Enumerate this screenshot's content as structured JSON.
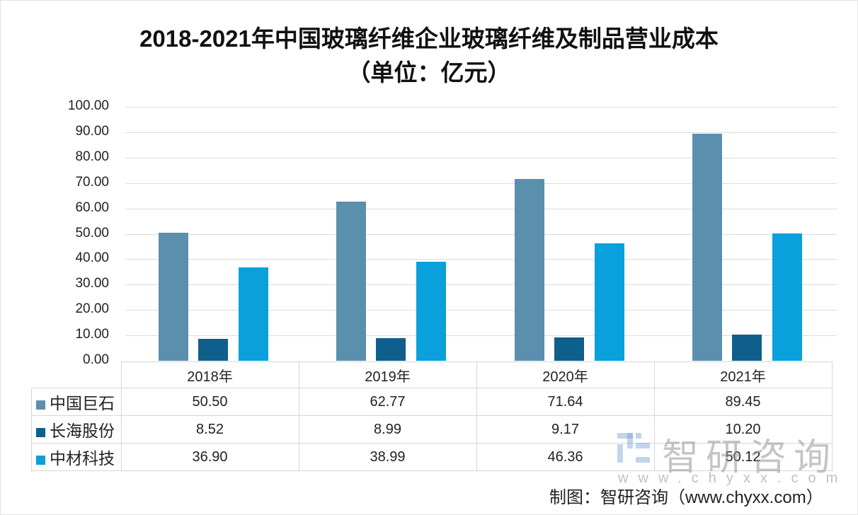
{
  "title_line1": "2018-2021年中国玻璃纤维企业玻璃纤维及制品营业成本",
  "title_line2": "（单位：亿元）",
  "source": "制图：智研咨询（www.chyxx.com）",
  "watermark": {
    "text": "智研咨询",
    "url": "www.chyxx.com"
  },
  "y_ticks": [
    "100.00",
    "90.00",
    "80.00",
    "70.00",
    "60.00",
    "50.00",
    "40.00",
    "30.00",
    "20.00",
    "10.00",
    "0.00"
  ],
  "table": {
    "headers": [
      "2018年",
      "2019年",
      "2020年",
      "2021年"
    ],
    "rows": [
      {
        "name": "中国巨石",
        "color": "#5b8fae",
        "cells": [
          "50.50",
          "62.77",
          "71.64",
          "89.45"
        ]
      },
      {
        "name": "长海股份",
        "color": "#0f5f8c",
        "cells": [
          "8.52",
          "8.99",
          "9.17",
          "10.20"
        ]
      },
      {
        "name": "中材科技",
        "color": "#0aa0dc",
        "cells": [
          "36.90",
          "38.99",
          "46.36",
          "50.12"
        ]
      }
    ]
  },
  "chart_data": {
    "type": "bar",
    "title": "2018-2021年中国玻璃纤维企业玻璃纤维及制品营业成本（单位：亿元）",
    "categories": [
      "2018年",
      "2019年",
      "2020年",
      "2021年"
    ],
    "series": [
      {
        "name": "中国巨石",
        "color": "#5b8fae",
        "values": [
          50.5,
          62.77,
          71.64,
          89.45
        ]
      },
      {
        "name": "长海股份",
        "color": "#0f5f8c",
        "values": [
          8.52,
          8.99,
          9.17,
          10.2
        ]
      },
      {
        "name": "中材科技",
        "color": "#0aa0dc",
        "values": [
          36.9,
          38.99,
          46.36,
          50.12
        ]
      }
    ],
    "xlabel": "",
    "ylabel": "亿元",
    "ylim": [
      0,
      100
    ],
    "grid": true,
    "legend_position": "data-table"
  }
}
